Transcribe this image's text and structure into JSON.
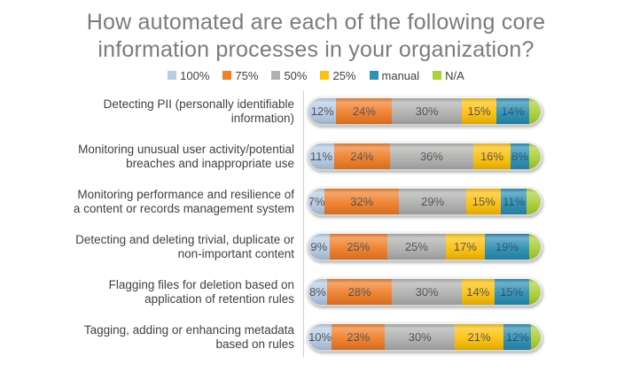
{
  "title": {
    "line1": "How automated are each of the following core",
    "line2": "information processes in your organization?"
  },
  "colors": {
    "title_text": "#7b7b7b",
    "category_text": "#414141",
    "axis_line": "#cfcfcf",
    "segment_label_default": "#474747",
    "segment_label_manual": "#1c4c62"
  },
  "chart_data": {
    "type": "bar",
    "stacked": true,
    "orientation": "horizontal",
    "title": "How automated are each of the following core information processes in your organization?",
    "legend_position": "top",
    "xlim": [
      0,
      100
    ],
    "grid": false,
    "value_suffix": "%",
    "categories": [
      "Detecting PII (personally identifiable information)",
      "Monitoring unusual user activity/potential breaches and inappropriate use",
      "Monitoring performance and resilience of a content or records management system",
      "Detecting and deleting trivial, duplicate or non-important content",
      "Flagging files for deletion based on application of retention rules",
      "Tagging, adding or enhancing metadata based on rules"
    ],
    "category_lines": [
      [
        "Detecting PII (personally identifiable",
        "information)"
      ],
      [
        "Monitoring unusual user activity/potential",
        "breaches and inappropriate use"
      ],
      [
        "Monitoring performance and resilience of",
        "a content or records management system"
      ],
      [
        "Detecting and deleting trivial, duplicate or",
        "non-important content"
      ],
      [
        "Flagging files for deletion based on",
        "application of retention rules"
      ],
      [
        "Tagging, adding or enhancing metadata",
        "based on rules"
      ]
    ],
    "series": [
      {
        "name": "100%",
        "color": "#b7cce5",
        "values": [
          12,
          11,
          7,
          9,
          8,
          10
        ],
        "show_labels": true
      },
      {
        "name": "75%",
        "color": "#f07f2a",
        "values": [
          24,
          24,
          32,
          25,
          28,
          23
        ],
        "show_labels": true
      },
      {
        "name": "50%",
        "color": "#b1b1b0",
        "values": [
          30,
          36,
          29,
          25,
          30,
          30
        ],
        "show_labels": true
      },
      {
        "name": "25%",
        "color": "#fcc10d",
        "values": [
          15,
          16,
          15,
          17,
          14,
          21
        ],
        "show_labels": true
      },
      {
        "name": "manual",
        "color": "#2e90b5",
        "values": [
          14,
          8,
          11,
          19,
          15,
          12
        ],
        "show_labels": true,
        "label_color": "#1c4c62"
      },
      {
        "name": "N/A",
        "color": "#abd038",
        "values": [
          5,
          5,
          6,
          5,
          5,
          4
        ],
        "show_labels": false
      }
    ]
  }
}
